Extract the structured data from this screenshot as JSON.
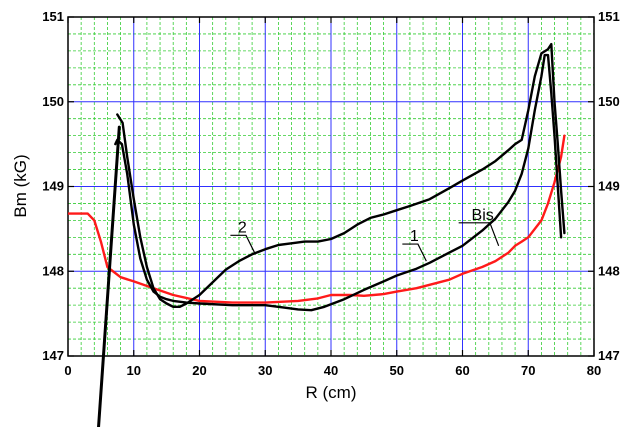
{
  "chart_data": {
    "type": "line",
    "title": "",
    "xlabel": "R (cm)",
    "ylabel": "Bm (kG)",
    "xlim": [
      0,
      80
    ],
    "ylim": [
      147,
      151
    ],
    "x_ticks": [
      "0",
      "10",
      "20",
      "30",
      "40",
      "50",
      "60",
      "70",
      "80"
    ],
    "y_ticks": [
      "147",
      "148",
      "149",
      "150",
      "151"
    ],
    "grid": {
      "major": true,
      "minor": true,
      "major_color": "#3030ff",
      "minor_color": "#33cc33"
    },
    "series": [
      {
        "name": "Bis",
        "color": "#ff1a1a",
        "points": [
          [
            0,
            148.68
          ],
          [
            3,
            148.68
          ],
          [
            4,
            148.6
          ],
          [
            5,
            148.35
          ],
          [
            6,
            148.05
          ],
          [
            8,
            147.93
          ],
          [
            10,
            147.88
          ],
          [
            13,
            147.8
          ],
          [
            16,
            147.72
          ],
          [
            20,
            147.65
          ],
          [
            25,
            147.63
          ],
          [
            30,
            147.63
          ],
          [
            35,
            147.65
          ],
          [
            38,
            147.68
          ],
          [
            40,
            147.72
          ],
          [
            43,
            147.72
          ],
          [
            45,
            147.71
          ],
          [
            48,
            147.73
          ],
          [
            50,
            147.76
          ],
          [
            53,
            147.8
          ],
          [
            55,
            147.84
          ],
          [
            58,
            147.9
          ],
          [
            60,
            147.97
          ],
          [
            63,
            148.05
          ],
          [
            65,
            148.12
          ],
          [
            67,
            148.22
          ],
          [
            68,
            148.3
          ],
          [
            69,
            148.35
          ],
          [
            70,
            148.4
          ],
          [
            72,
            148.6
          ],
          [
            73,
            148.8
          ],
          [
            74,
            149.05
          ],
          [
            75,
            149.35
          ],
          [
            75.5,
            149.6
          ]
        ]
      },
      {
        "name": "1",
        "color": "#000000",
        "points": [
          [
            7.2,
            149.5
          ],
          [
            7.5,
            149.55
          ],
          [
            8.2,
            149.5
          ],
          [
            9,
            149.15
          ],
          [
            10,
            148.55
          ],
          [
            11,
            148.15
          ],
          [
            12,
            147.9
          ],
          [
            13,
            147.76
          ],
          [
            14,
            147.7
          ],
          [
            15,
            147.67
          ],
          [
            16,
            147.65
          ],
          [
            18,
            147.63
          ],
          [
            20,
            147.62
          ],
          [
            25,
            147.6
          ],
          [
            30,
            147.6
          ],
          [
            33,
            147.57
          ],
          [
            35,
            147.55
          ],
          [
            37,
            147.54
          ],
          [
            39,
            147.58
          ],
          [
            42,
            147.67
          ],
          [
            45,
            147.78
          ],
          [
            48,
            147.88
          ],
          [
            50,
            147.95
          ],
          [
            53,
            148.03
          ],
          [
            55,
            148.1
          ],
          [
            58,
            148.22
          ],
          [
            60,
            148.3
          ],
          [
            63,
            148.48
          ],
          [
            65,
            148.62
          ],
          [
            67,
            148.82
          ],
          [
            68,
            148.95
          ],
          [
            69,
            149.15
          ],
          [
            70,
            149.45
          ],
          [
            71,
            149.9
          ],
          [
            72,
            150.3
          ],
          [
            72.5,
            150.55
          ],
          [
            73,
            150.55
          ],
          [
            73.5,
            150.1
          ],
          [
            74,
            149.6
          ],
          [
            74.5,
            149.0
          ],
          [
            75,
            148.4
          ]
        ]
      },
      {
        "name": "2",
        "color": "#000000",
        "points": [
          [
            7.5,
            149.85
          ],
          [
            8.3,
            149.75
          ],
          [
            9,
            149.35
          ],
          [
            10,
            148.85
          ],
          [
            11,
            148.4
          ],
          [
            12,
            148.05
          ],
          [
            13,
            147.8
          ],
          [
            14,
            147.67
          ],
          [
            15,
            147.62
          ],
          [
            16,
            147.58
          ],
          [
            17,
            147.58
          ],
          [
            18,
            147.62
          ],
          [
            20,
            147.72
          ],
          [
            22,
            147.87
          ],
          [
            24,
            148.02
          ],
          [
            26,
            148.12
          ],
          [
            28,
            148.2
          ],
          [
            30,
            148.26
          ],
          [
            32,
            148.31
          ],
          [
            34,
            148.33
          ],
          [
            36,
            148.35
          ],
          [
            38,
            148.35
          ],
          [
            40,
            148.38
          ],
          [
            42,
            148.45
          ],
          [
            44,
            148.55
          ],
          [
            46,
            148.63
          ],
          [
            48,
            148.67
          ],
          [
            50,
            148.72
          ],
          [
            52,
            148.77
          ],
          [
            55,
            148.85
          ],
          [
            58,
            148.98
          ],
          [
            60,
            149.07
          ],
          [
            63,
            149.2
          ],
          [
            65,
            149.3
          ],
          [
            67,
            149.43
          ],
          [
            68,
            149.5
          ],
          [
            69,
            149.55
          ],
          [
            70,
            149.9
          ],
          [
            71,
            150.3
          ],
          [
            72,
            150.57
          ],
          [
            73,
            150.62
          ],
          [
            73.5,
            150.68
          ],
          [
            74,
            150.0
          ],
          [
            74.5,
            149.5
          ],
          [
            75,
            148.95
          ],
          [
            75.5,
            148.45
          ]
        ]
      }
    ],
    "annotations": [
      {
        "text": "2",
        "at": [
          28.5,
          148.2
        ]
      },
      {
        "text": "1",
        "at": [
          54.5,
          148.12
        ]
      },
      {
        "text": "Bis",
        "at": [
          65.5,
          148.3
        ]
      }
    ],
    "extra_line": {
      "color": "#000000",
      "from": [
        4.5,
        146.0
      ],
      "to": [
        7.8,
        149.7
      ]
    }
  }
}
